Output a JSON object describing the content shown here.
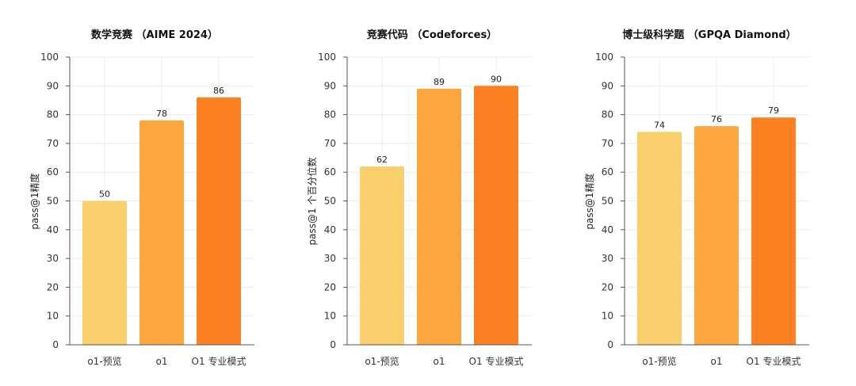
{
  "chart_data": [
    {
      "type": "bar",
      "title": "数学竞赛 （AIME 2024）",
      "ylabel": "pass@1精度",
      "categories": [
        "o1-预览",
        "o1",
        "O1 专业模式"
      ],
      "values": [
        50,
        78,
        86
      ],
      "ylim": [
        0,
        100
      ],
      "yticks": [
        0,
        10,
        20,
        30,
        40,
        50,
        60,
        70,
        80,
        90,
        100
      ],
      "grid": true,
      "colors": [
        "#FAD06E",
        "#FCA640",
        "#FC8122"
      ]
    },
    {
      "type": "bar",
      "title": "竞赛代码 （Codeforces）",
      "ylabel": "pass@1 个百分位数",
      "categories": [
        "o1-预览",
        "o1",
        "O1 专业模式"
      ],
      "values": [
        62,
        89,
        90
      ],
      "ylim": [
        0,
        100
      ],
      "yticks": [
        0,
        10,
        20,
        30,
        40,
        50,
        60,
        70,
        80,
        90,
        100
      ],
      "grid": true,
      "colors": [
        "#FAD06E",
        "#FCA640",
        "#FC8122"
      ]
    },
    {
      "type": "bar",
      "title": "博士级科学题 （GPQA Diamond）",
      "ylabel": "pass@1精度",
      "categories": [
        "o1-预览",
        "o1",
        "O1 专业模式"
      ],
      "values": [
        74,
        76,
        79
      ],
      "ylim": [
        0,
        100
      ],
      "yticks": [
        0,
        10,
        20,
        30,
        40,
        50,
        60,
        70,
        80,
        90,
        100
      ],
      "grid": true,
      "colors": [
        "#FAD06E",
        "#FCA640",
        "#FC8122"
      ]
    }
  ]
}
